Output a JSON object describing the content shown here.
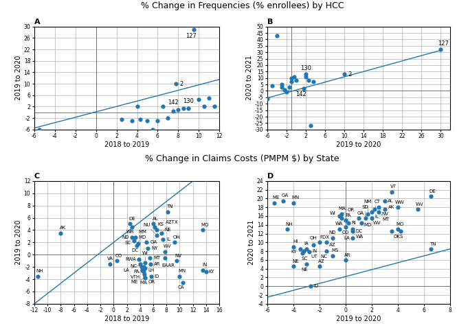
{
  "titles": [
    "% Change in Frequencies (% enrollees) by HCC",
    "% Change in Claims Costs (PMPM $) by State"
  ],
  "chart_data": [
    {
      "type": "scatter",
      "title": "A",
      "x_label": "2018 to 2019",
      "y_label": "2019 to 2020",
      "xlim": [
        -6,
        12
      ],
      "ylim": [
        -6,
        30
      ],
      "xticks": [
        -6,
        -4,
        -2,
        0,
        2,
        4,
        6,
        8,
        10,
        12
      ],
      "yticks": [
        -6,
        -2,
        2,
        6,
        10,
        14,
        18,
        22,
        26,
        30
      ],
      "grid": true,
      "vline": 0,
      "hline": 0,
      "x": [
        -5.5,
        2.5,
        3.5,
        4.0,
        4.3,
        5.0,
        5.5,
        6.0,
        6.5,
        7.0,
        7.5,
        7.8,
        8.0,
        8.5,
        9.0,
        9.5,
        10.0,
        10.5,
        11.0,
        11.5
      ],
      "values": [
        -6.0,
        -2.5,
        -3.0,
        2.0,
        -2.5,
        -3.0,
        -6.0,
        -3.0,
        2.0,
        -2.0,
        0.5,
        10.0,
        1.0,
        1.5,
        1.5,
        29.0,
        4.5,
        2.0,
        5.0,
        2.0
      ],
      "annotations": [
        {
          "x": 9.5,
          "y": 29.0,
          "text": "127"
        },
        {
          "x": 7.8,
          "y": 10.0,
          "text": "2"
        },
        {
          "x": 7.5,
          "y": 0.5,
          "text": "142"
        },
        {
          "x": 9.0,
          "y": 1.5,
          "text": "130"
        }
      ],
      "trend": {
        "x": [
          -6,
          12
        ],
        "values": [
          -5.5,
          11.5
        ]
      }
    },
    {
      "type": "scatter",
      "title": "B",
      "x_label": "2019 to 2020",
      "y_label": "2020 to 2021",
      "xlim": [
        -6,
        32
      ],
      "ylim": [
        -30,
        50
      ],
      "xticks": [
        -6,
        -2,
        2,
        6,
        10,
        14,
        18,
        22,
        26,
        30
      ],
      "yticks": [
        -30,
        -25,
        -20,
        -15,
        -10,
        -5,
        0,
        5,
        10,
        15,
        20,
        25,
        30,
        35,
        40,
        45,
        50
      ],
      "grid": true,
      "vline": -1,
      "hline": 0,
      "x": [
        -6.0,
        -5.0,
        -4.0,
        -3.0,
        -3.0,
        -2.5,
        -2.0,
        -1.5,
        -1.0,
        -1.0,
        -0.5,
        0.0,
        1.5,
        2.0,
        2.0,
        2.5,
        3.0,
        3.5,
        10.0,
        30.0
      ],
      "values": [
        -6.0,
        4.0,
        43.0,
        3.0,
        5.0,
        1.0,
        -1.0,
        3.0,
        7.0,
        10.0,
        11.0,
        8.0,
        2.0,
        11.0,
        13.0,
        8.0,
        -27.0,
        7.0,
        13.0,
        32.0
      ],
      "annotations": [
        {
          "x": 30.0,
          "y": 32.0,
          "text": "127"
        },
        {
          "x": 10.0,
          "y": 13.0,
          "text": "2"
        },
        {
          "x": 2.0,
          "y": 11.0,
          "text": "130"
        },
        {
          "x": 1.5,
          "y": 2.0,
          "text": "142"
        }
      ],
      "trend": {
        "x": [
          -6,
          30
        ],
        "values": [
          -5.5,
          31.5
        ]
      }
    },
    {
      "type": "scatter",
      "title": "C",
      "x_label": "2018 to 2019",
      "y_label": "2019 to 2020",
      "xlim": [
        -12,
        16
      ],
      "ylim": [
        -8,
        12
      ],
      "xticks": [
        -12,
        -10,
        -8,
        -6,
        -4,
        -2,
        0,
        2,
        4,
        6,
        8,
        10,
        12,
        14,
        16
      ],
      "yticks": [
        -8,
        -6,
        -4,
        -2,
        0,
        2,
        4,
        6,
        8,
        10,
        12
      ],
      "grid": true,
      "vline": 0,
      "hline": 0,
      "x": [
        -11.5,
        -8.0,
        -0.5,
        0.5,
        2.5,
        2.8,
        2.8,
        3.1,
        3.3,
        3.5,
        3.7,
        3.8,
        4.0,
        4.2,
        4.3,
        4.5,
        4.5,
        4.6,
        4.7,
        5.0,
        5.2,
        5.5,
        5.6,
        5.7,
        6.0,
        6.2,
        6.5,
        6.5,
        7.2,
        7.5,
        7.8,
        7.8,
        8.2,
        9.2,
        9.5,
        10.0,
        10.5,
        13.5,
        13.5,
        14.0,
        4.8,
        4.8
      ],
      "values": [
        -3.5,
        3.5,
        -1.5,
        -1.0,
        5.0,
        4.5,
        2.8,
        2.3,
        2.8,
        1.5,
        1.8,
        -0.8,
        -1.5,
        -2.0,
        -2.5,
        -2.0,
        -2.8,
        -3.2,
        -3.8,
        2.0,
        1.0,
        -0.5,
        -1.5,
        -3.5,
        5.0,
        4.5,
        4.0,
        3.2,
        3.5,
        2.5,
        0.5,
        -0.5,
        7.0,
        2.0,
        -1.0,
        -3.5,
        -4.5,
        4.0,
        -2.5,
        -2.8,
        -2.2,
        -1.3
      ],
      "point_labels": [
        "NH",
        "AK",
        "VA",
        "CO",
        "DE",
        "WR",
        "ND",
        "SC",
        "MD",
        "DC",
        "MM",
        "RWA",
        "NC",
        "PA",
        "VTH",
        "LH",
        "MA",
        "OR",
        "ME",
        "GA",
        "NY",
        "MT",
        "AR",
        "ID",
        "AL",
        "KS",
        "NE",
        "NU",
        "AZTX",
        "IL",
        "WV",
        "EAAR",
        "TN",
        "OH",
        "NV",
        "MN",
        "CA",
        "MO",
        "IN",
        "KY",
        "WI",
        "LA"
      ],
      "trend": {
        "x": [
          -12,
          12
        ],
        "values": [
          -8.0,
          12.0
        ]
      }
    },
    {
      "type": "scatter",
      "title": "D",
      "x_label": "2019 to 2020",
      "y_label": "2020 to 2021",
      "xlim": [
        -6,
        8
      ],
      "ylim": [
        -4,
        24
      ],
      "xticks": [
        -6,
        -4,
        -2,
        0,
        2,
        4,
        6,
        8
      ],
      "yticks": [
        -4,
        -2,
        0,
        2,
        4,
        6,
        8,
        10,
        12,
        14,
        16,
        18,
        20,
        22,
        24
      ],
      "grid": true,
      "vline": 0,
      "hline": 0,
      "x": [
        -2.7,
        -4.0,
        -3.3,
        -3.0,
        -2.5,
        -2.0,
        -1.5,
        -1.0,
        -0.5,
        0.0,
        0.0,
        0.2,
        0.5,
        0.5,
        1.0,
        1.2,
        1.5,
        1.7,
        2.0,
        2.0,
        2.2,
        2.5,
        2.5,
        3.0,
        3.0,
        3.5,
        -5.5,
        -4.8,
        -4.0,
        4.0,
        4.0,
        4.2,
        6.5,
        -4.5,
        -4.0,
        -3.5,
        -3.2,
        -2.8,
        -1.5,
        -1.0,
        0.0,
        0.5,
        -0.3,
        -0.3,
        -0.5,
        5.5,
        6.5,
        3.5,
        -3.0,
        -2.0
      ],
      "values": [
        0.0,
        4.5,
        7.5,
        8.5,
        9.5,
        10.0,
        10.0,
        11.0,
        13.0,
        13.5,
        15.0,
        14.5,
        12.5,
        13.0,
        15.5,
        14.5,
        15.5,
        16.5,
        17.0,
        15.5,
        17.5,
        18.0,
        17.0,
        17.5,
        19.5,
        21.5,
        19.0,
        19.5,
        19.0,
        18.0,
        13.0,
        12.5,
        20.5,
        13.0,
        9.0,
        8.5,
        8.0,
        7.8,
        8.0,
        7.0,
        6.0,
        11.0,
        15.5,
        16.5,
        16.0,
        17.5,
        8.5,
        12.5,
        5.0,
        4.5
      ],
      "point_labels": [
        "ID",
        "NE",
        "SC",
        "IA",
        "OH",
        "FDX",
        "AZ",
        "ND",
        "WA",
        "CO",
        "PA",
        "RI",
        "DC",
        "WA",
        "GA",
        "MD",
        "SD",
        "NM",
        "IL",
        "WV",
        "CT",
        "NV",
        "MT",
        "AK",
        "AL",
        "VT",
        "ME",
        "GA",
        "MN",
        "WW",
        "MO",
        "OKS",
        "DE",
        "NH",
        "HI",
        "KY",
        "IN",
        "UT",
        "NC",
        "MS",
        "AR",
        "LA",
        "MA",
        "OR",
        "WI",
        "WV",
        "TN",
        null,
        "NE",
        "AZ"
      ],
      "trend": {
        "x": [
          -6,
          8
        ],
        "values": [
          -2.5,
          8.5
        ]
      }
    }
  ]
}
